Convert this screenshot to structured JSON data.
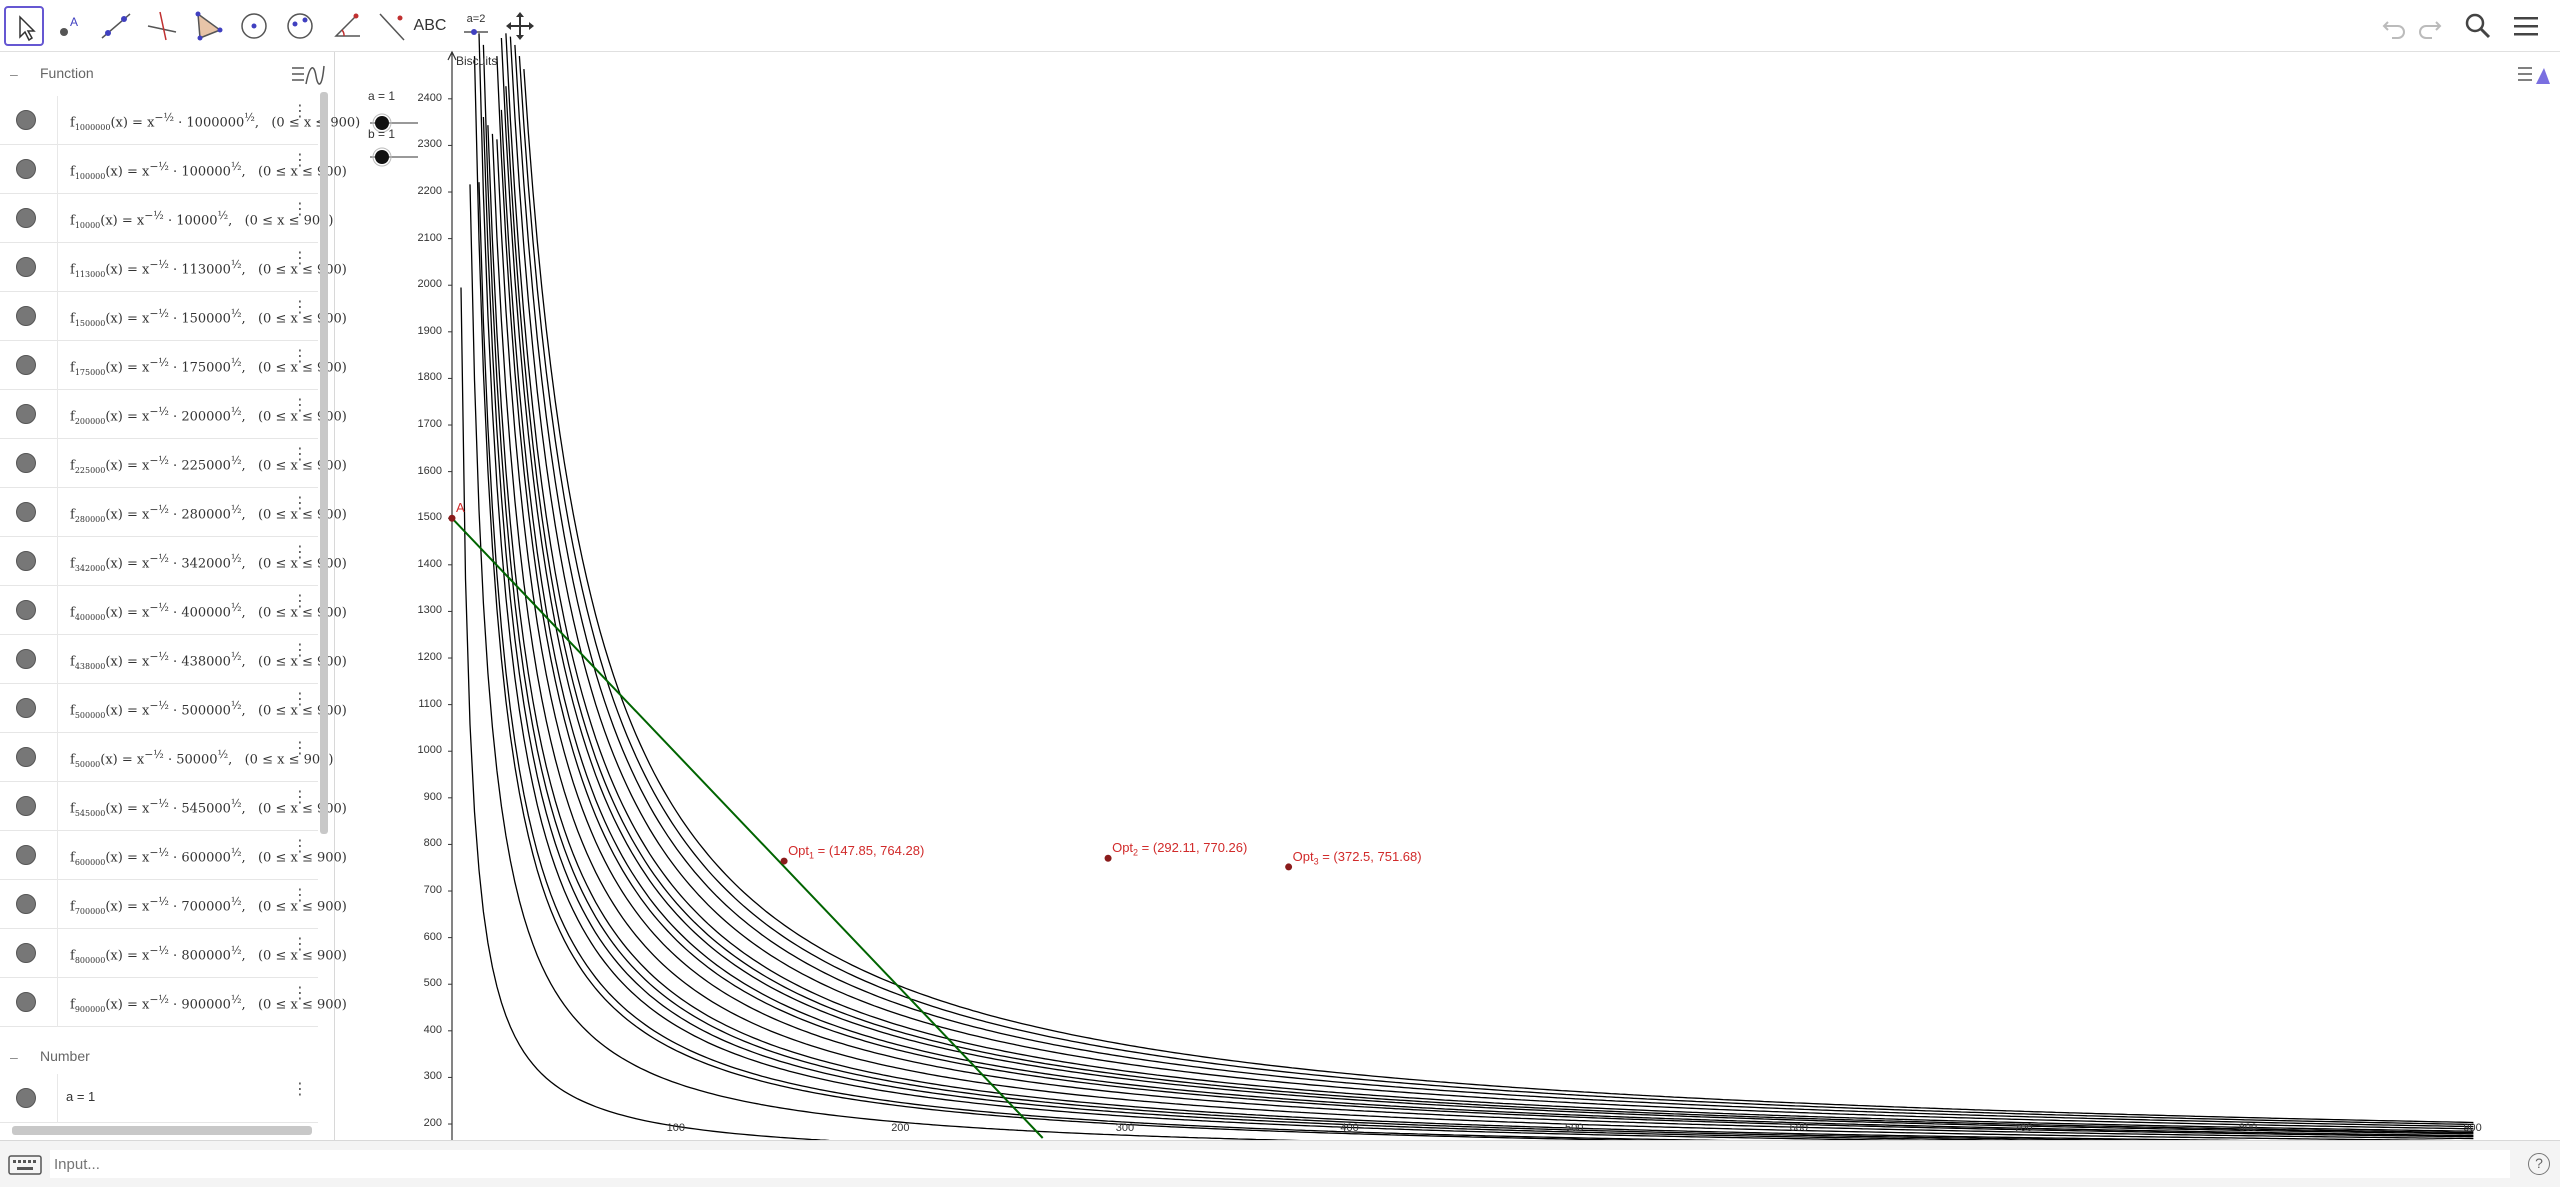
{
  "toolbar": {
    "tools": [
      "Move",
      "Point",
      "Line",
      "Perpendicular Line",
      "Polygon",
      "Circle",
      "Ellipse",
      "Angle",
      "Reflect",
      "ABC",
      "a = 2",
      "Move Graphics View"
    ],
    "text_tool_label": "ABC",
    "slider_tool_label": "a=2",
    "accent": "#6557d2"
  },
  "algebra": {
    "function_header": "Function",
    "number_header": "Number",
    "functions": [
      {
        "sub": "1000000",
        "k": "1000000",
        "dom": "(0 ≤ x ≤ 900)"
      },
      {
        "sub": "100000",
        "k": "100000",
        "dom": "(0 ≤ x ≤ 900)"
      },
      {
        "sub": "10000",
        "k": "10000",
        "dom": "(0 ≤ x ≤ 900)"
      },
      {
        "sub": "113000",
        "k": "113000",
        "dom": "(0 ≤ x ≤ 900)"
      },
      {
        "sub": "150000",
        "k": "150000",
        "dom": "(0 ≤ x ≤ 900)"
      },
      {
        "sub": "175000",
        "k": "175000",
        "dom": "(0 ≤ x ≤ 900)"
      },
      {
        "sub": "200000",
        "k": "200000",
        "dom": "(0 ≤ x ≤ 900)"
      },
      {
        "sub": "225000",
        "k": "225000",
        "dom": "(0 ≤ x ≤ 900)"
      },
      {
        "sub": "280000",
        "k": "280000",
        "dom": "(0 ≤ x ≤ 900)"
      },
      {
        "sub": "342000",
        "k": "342000",
        "dom": "(0 ≤ x ≤ 900)"
      },
      {
        "sub": "400000",
        "k": "400000",
        "dom": "(0 ≤ x ≤ 900)"
      },
      {
        "sub": "438000",
        "k": "438000",
        "dom": "(0 ≤ x ≤ 900)"
      },
      {
        "sub": "500000",
        "k": "500000",
        "dom": "(0 ≤ x ≤ 900)"
      },
      {
        "sub": "50000",
        "k": "50000",
        "dom": "(0 ≤ x ≤ 900)"
      },
      {
        "sub": "545000",
        "k": "545000",
        "dom": "(0 ≤ x ≤ 900)"
      },
      {
        "sub": "600000",
        "k": "600000",
        "dom": "(0 ≤ x ≤ 900)"
      },
      {
        "sub": "700000",
        "k": "700000",
        "dom": "(0 ≤ x ≤ 900)"
      },
      {
        "sub": "800000",
        "k": "800000",
        "dom": "(0 ≤ x ≤ 900)"
      },
      {
        "sub": "900000",
        "k": "900000",
        "dom": "(0 ≤ x ≤ 900)"
      }
    ],
    "numbers": [
      {
        "expr": "a = 1"
      }
    ]
  },
  "graphics": {
    "y_axis_title": "Biscuits",
    "sliders": [
      {
        "label": "a = 1"
      },
      {
        "label": "b = 1"
      }
    ],
    "point_A_label": "A",
    "points": [
      {
        "name": "Opt",
        "sub": "1",
        "coords": " = (147.85, 764.28)",
        "x": 147.85,
        "y": 764.28
      },
      {
        "name": "Opt",
        "sub": "2",
        "coords": " = (292.11, 770.26)",
        "x": 292.11,
        "y": 770.26
      },
      {
        "name": "Opt",
        "sub": "3",
        "coords": " = (372.5, 751.68)",
        "x": 372.5,
        "y": 751.68
      }
    ],
    "point_A": {
      "x": 0,
      "y": 1500
    },
    "budget_line": {
      "x1": 0,
      "y1": 1500,
      "x2": 263,
      "y2": 170,
      "color": "#006400"
    },
    "curve_color": "#000000",
    "point_color": "#d12a2a",
    "x_ticks": [
      "100",
      "200",
      "300",
      "400",
      "500",
      "600",
      "700",
      "800",
      "900"
    ],
    "y_ticks": [
      "2400",
      "2300",
      "2200",
      "2100",
      "2000",
      "1900",
      "1800",
      "1700",
      "1600",
      "1500",
      "1400",
      "1300",
      "1200",
      "1100",
      "1000",
      "900",
      "800",
      "700",
      "600",
      "500",
      "400",
      "300",
      "200"
    ],
    "k_values": [
      10000,
      50000,
      100000,
      113000,
      150000,
      175000,
      200000,
      225000,
      280000,
      342000,
      400000,
      438000,
      500000,
      545000,
      600000,
      700000,
      800000,
      900000,
      1000000
    ]
  },
  "inputbar": {
    "placeholder": "Input...",
    "help": "?"
  }
}
